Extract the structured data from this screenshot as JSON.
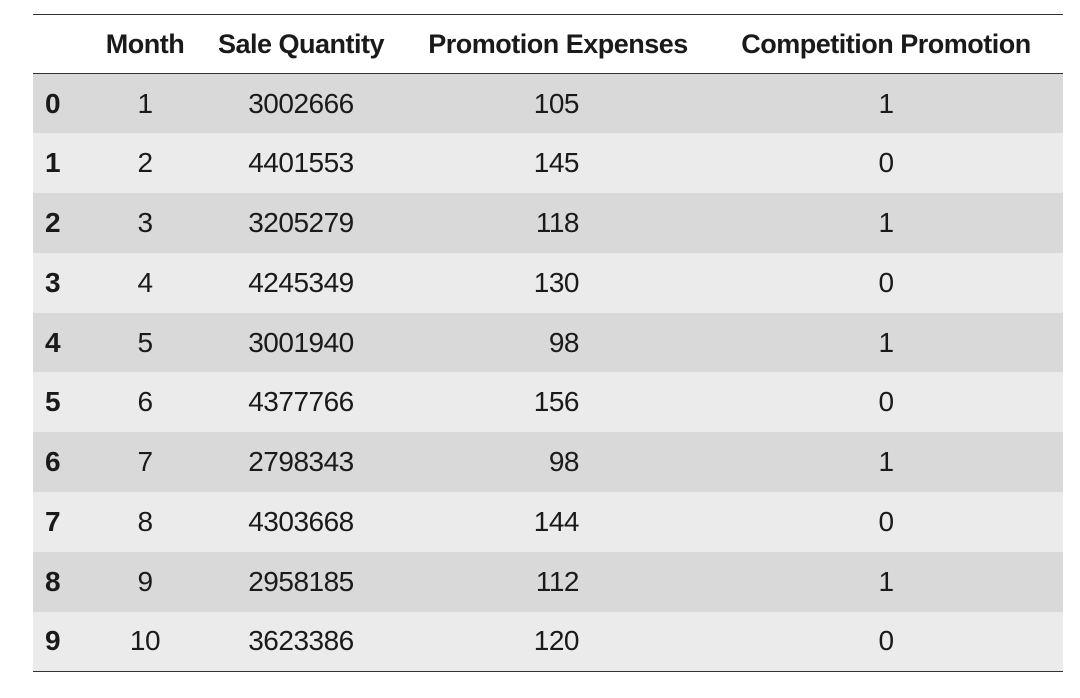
{
  "table": {
    "columns": [
      "",
      "Month",
      "Sale Quantity",
      "Promotion Expenses",
      "Competition Promotion"
    ],
    "rows": [
      {
        "index": "0",
        "month": "1",
        "sale_quantity": "3002666",
        "promotion_expenses": "105",
        "competition_promotion": "1"
      },
      {
        "index": "1",
        "month": "2",
        "sale_quantity": "4401553",
        "promotion_expenses": "145",
        "competition_promotion": "0"
      },
      {
        "index": "2",
        "month": "3",
        "sale_quantity": "3205279",
        "promotion_expenses": "118",
        "competition_promotion": "1"
      },
      {
        "index": "3",
        "month": "4",
        "sale_quantity": "4245349",
        "promotion_expenses": "130",
        "competition_promotion": "0"
      },
      {
        "index": "4",
        "month": "5",
        "sale_quantity": "3001940",
        "promotion_expenses": "98",
        "competition_promotion": "1"
      },
      {
        "index": "5",
        "month": "6",
        "sale_quantity": "4377766",
        "promotion_expenses": "156",
        "competition_promotion": "0"
      },
      {
        "index": "6",
        "month": "7",
        "sale_quantity": "2798343",
        "promotion_expenses": "98",
        "competition_promotion": "1"
      },
      {
        "index": "7",
        "month": "8",
        "sale_quantity": "4303668",
        "promotion_expenses": "144",
        "competition_promotion": "0"
      },
      {
        "index": "8",
        "month": "9",
        "sale_quantity": "2958185",
        "promotion_expenses": "112",
        "competition_promotion": "1"
      },
      {
        "index": "9",
        "month": "10",
        "sale_quantity": "3623386",
        "promotion_expenses": "120",
        "competition_promotion": "0"
      }
    ]
  }
}
